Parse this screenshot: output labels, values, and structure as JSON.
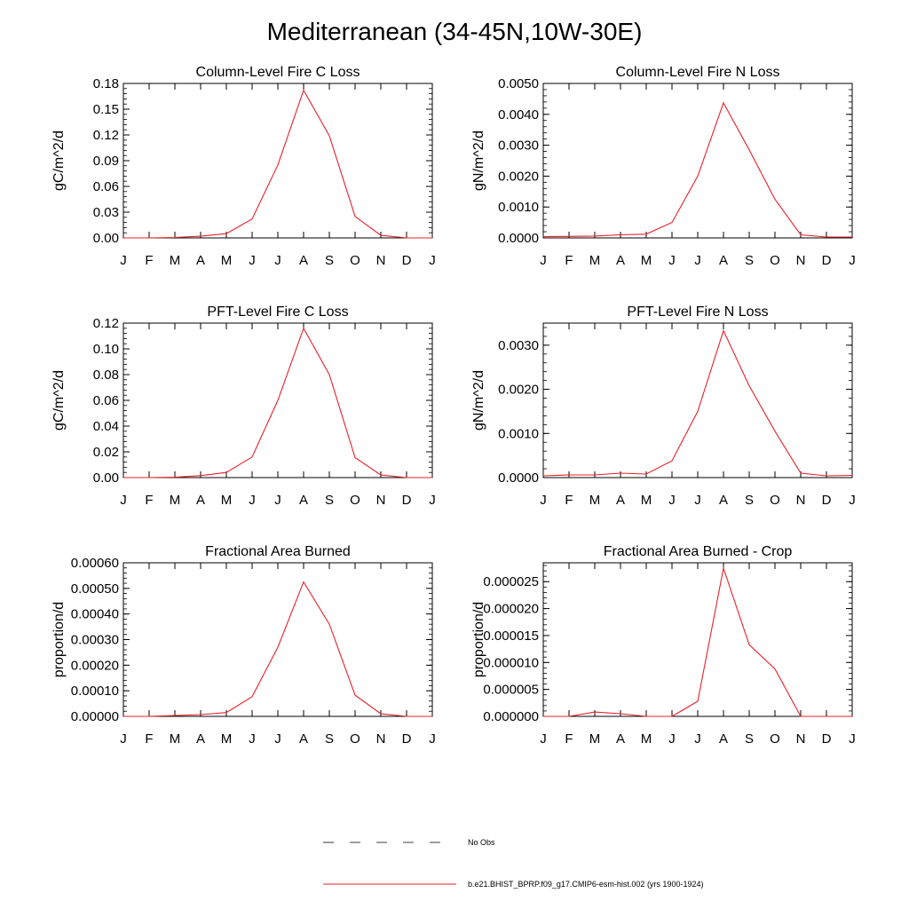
{
  "title": "Mediterranean (34-45N,10W-30E)",
  "series_color": "#e8202a",
  "legend": {
    "entries": [
      {
        "label": "No Obs",
        "style": "dashed",
        "color": "#000000"
      },
      {
        "label": "b.e21.BHIST_BPRP.f09_g17.CMIP6-esm-hist.002 (yrs 1900-1924)",
        "style": "solid",
        "color": "#e8202a"
      }
    ]
  },
  "chart_data": [
    {
      "type": "line",
      "title": "Column-Level Fire C Loss",
      "ylabel": "gC/m^2/d",
      "categories": [
        "J",
        "F",
        "M",
        "A",
        "M",
        "J",
        "J",
        "A",
        "S",
        "O",
        "N",
        "D",
        "J"
      ],
      "ylim": [
        0,
        0.18
      ],
      "yticks": [
        "0.00",
        "0.03",
        "0.06",
        "0.09",
        "0.12",
        "0.15",
        "0.18"
      ],
      "grid": false,
      "series": [
        {
          "name": "b.e21.BHIST_BPRP.f09_g17.CMIP6-esm-hist.002 (yrs 1900-1924)",
          "values": [
            0.0,
            0.0,
            0.0005,
            0.002,
            0.005,
            0.022,
            0.085,
            0.172,
            0.119,
            0.025,
            0.003,
            0.0,
            0.0
          ]
        }
      ]
    },
    {
      "type": "line",
      "title": "Column-Level Fire N Loss",
      "ylabel": "gN/m^2/d",
      "categories": [
        "J",
        "F",
        "M",
        "A",
        "M",
        "J",
        "J",
        "A",
        "S",
        "O",
        "N",
        "D",
        "J"
      ],
      "ylim": [
        0,
        0.005
      ],
      "yticks": [
        "0.0000",
        "0.0010",
        "0.0020",
        "0.0030",
        "0.0040",
        "0.0050"
      ],
      "grid": false,
      "series": [
        {
          "name": "b.e21.BHIST_BPRP.f09_g17.CMIP6-esm-hist.002 (yrs 1900-1924)",
          "values": [
            4e-05,
            5e-05,
            6e-05,
            0.0001,
            0.00012,
            0.0005,
            0.002,
            0.00437,
            0.00285,
            0.00125,
            0.0001,
            3e-05,
            3e-05
          ]
        }
      ]
    },
    {
      "type": "line",
      "title": "PFT-Level Fire C Loss",
      "ylabel": "gC/m^2/d",
      "categories": [
        "J",
        "F",
        "M",
        "A",
        "M",
        "J",
        "J",
        "A",
        "S",
        "O",
        "N",
        "D",
        "J"
      ],
      "ylim": [
        0,
        0.12
      ],
      "yticks": [
        "0.00",
        "0.02",
        "0.04",
        "0.06",
        "0.08",
        "0.10",
        "0.12"
      ],
      "grid": false,
      "series": [
        {
          "name": "b.e21.BHIST_BPRP.f09_g17.CMIP6-esm-hist.002 (yrs 1900-1924)",
          "values": [
            0.0,
            0.0,
            0.0003,
            0.0015,
            0.004,
            0.016,
            0.06,
            0.116,
            0.08,
            0.0155,
            0.002,
            0.0,
            0.0
          ]
        }
      ]
    },
    {
      "type": "line",
      "title": "PFT-Level Fire N Loss",
      "ylabel": "gN/m^2/d",
      "categories": [
        "J",
        "F",
        "M",
        "A",
        "M",
        "J",
        "J",
        "A",
        "S",
        "O",
        "N",
        "D",
        "J"
      ],
      "ylim": [
        0,
        0.0035
      ],
      "yticks": [
        "0.0000",
        "0.0010",
        "0.0020",
        "0.0030"
      ],
      "grid": false,
      "series": [
        {
          "name": "b.e21.BHIST_BPRP.f09_g17.CMIP6-esm-hist.002 (yrs 1900-1924)",
          "values": [
            4e-05,
            6e-05,
            6e-05,
            0.0001,
            8e-05,
            0.00038,
            0.0015,
            0.00333,
            0.00208,
            0.00105,
            0.0001,
            4e-05,
            5e-05
          ]
        }
      ]
    },
    {
      "type": "line",
      "title": "Fractional Area Burned",
      "ylabel": "proportion/d",
      "categories": [
        "J",
        "F",
        "M",
        "A",
        "M",
        "J",
        "J",
        "A",
        "S",
        "O",
        "N",
        "D",
        "J"
      ],
      "ylim": [
        0,
        0.0006
      ],
      "yticks": [
        "0.00000",
        "0.00010",
        "0.00020",
        "0.00030",
        "0.00040",
        "0.00050",
        "0.00060"
      ],
      "grid": false,
      "series": [
        {
          "name": "b.e21.BHIST_BPRP.f09_g17.CMIP6-esm-hist.002 (yrs 1900-1924)",
          "values": [
            0.0,
            0.0,
            3e-06,
            7e-06,
            1.5e-05,
            7.7e-05,
            0.00027,
            0.000525,
            0.00036,
            8.3e-05,
            1e-05,
            0.0,
            0.0
          ]
        }
      ]
    },
    {
      "type": "line",
      "title": "Fractional Area Burned - Crop",
      "ylabel": "proportion/d",
      "categories": [
        "J",
        "F",
        "M",
        "A",
        "M",
        "J",
        "J",
        "A",
        "S",
        "O",
        "N",
        "D",
        "J"
      ],
      "ylim": [
        0,
        2.85e-05
      ],
      "yticks": [
        "0.000000",
        "0.000005",
        "0.000010",
        "0.000015",
        "0.000020",
        "0.000025"
      ],
      "grid": false,
      "series": [
        {
          "name": "b.e21.BHIST_BPRP.f09_g17.CMIP6-esm-hist.002 (yrs 1900-1924)",
          "values": [
            0.0,
            0.0,
            8e-07,
            5e-07,
            0.0,
            0.0,
            2.8e-06,
            2.75e-05,
            1.33e-05,
            8.8e-06,
            0.0,
            0.0,
            0.0
          ]
        }
      ]
    }
  ]
}
